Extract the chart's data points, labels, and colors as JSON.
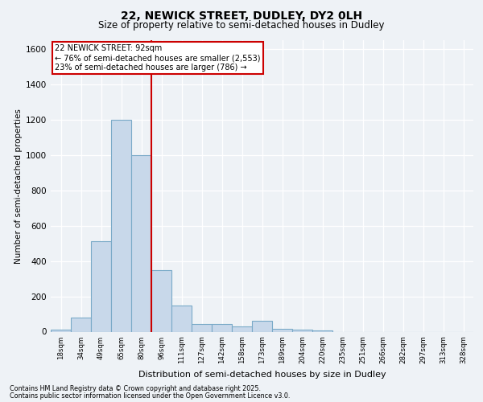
{
  "title1": "22, NEWICK STREET, DUDLEY, DY2 0LH",
  "title2": "Size of property relative to semi-detached houses in Dudley",
  "xlabel": "Distribution of semi-detached houses by size in Dudley",
  "ylabel": "Number of semi-detached properties",
  "bins": [
    "18sqm",
    "34sqm",
    "49sqm",
    "65sqm",
    "80sqm",
    "96sqm",
    "111sqm",
    "127sqm",
    "142sqm",
    "158sqm",
    "173sqm",
    "189sqm",
    "204sqm",
    "220sqm",
    "235sqm",
    "251sqm",
    "266sqm",
    "282sqm",
    "297sqm",
    "313sqm",
    "328sqm"
  ],
  "values": [
    10,
    80,
    510,
    1200,
    1000,
    350,
    150,
    45,
    45,
    30,
    60,
    15,
    10,
    5,
    0,
    0,
    0,
    0,
    0,
    0,
    0
  ],
  "bar_color": "#c8d8ea",
  "bar_edge_color": "#7aaac8",
  "vline_x_idx": 4.5,
  "vline_color": "#cc0000",
  "annotation_title": "22 NEWICK STREET: 92sqm",
  "annotation_line1": "← 76% of semi-detached houses are smaller (2,553)",
  "annotation_line2": "23% of semi-detached houses are larger (786) →",
  "annotation_box_edgecolor": "#cc0000",
  "ylim": [
    0,
    1650
  ],
  "yticks": [
    0,
    200,
    400,
    600,
    800,
    1000,
    1200,
    1400,
    1600
  ],
  "footer1": "Contains HM Land Registry data © Crown copyright and database right 2025.",
  "footer2": "Contains public sector information licensed under the Open Government Licence v3.0.",
  "background_color": "#eef2f6",
  "grid_color": "#ffffff"
}
